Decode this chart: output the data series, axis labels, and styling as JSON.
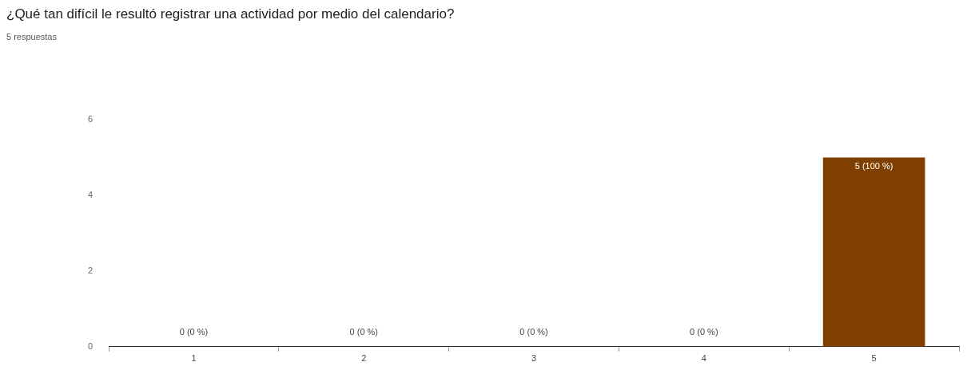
{
  "chart_data": {
    "type": "bar",
    "title": "¿Qué tan difícil le resultó registrar una actividad por medio del calendario?",
    "subtitle": "5 respuestas",
    "categories": [
      "1",
      "2",
      "3",
      "4",
      "5"
    ],
    "values": [
      0,
      0,
      0,
      0,
      5
    ],
    "value_labels": [
      "0 (0 %)",
      "0 (0 %)",
      "0 (0 %)",
      "0 (0 %)",
      "5 (100 %)"
    ],
    "color": "#7f3f00",
    "ylim": [
      0,
      6
    ],
    "yticks": [
      0,
      2,
      4,
      6
    ],
    "grid": false,
    "legend": false
  }
}
